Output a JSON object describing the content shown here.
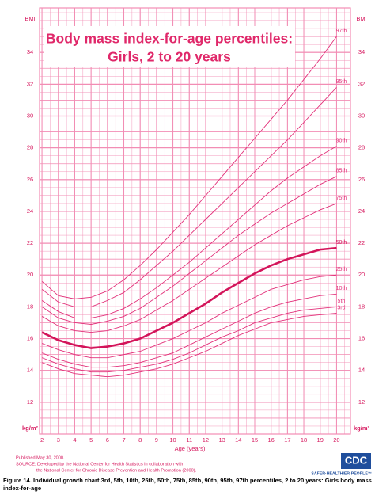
{
  "chart_data": {
    "type": "line",
    "title": "Body mass index-for-age percentiles:",
    "subtitle": "Girls, 2 to 20 years",
    "xlabel": "Age (years)",
    "y_unit_top": "BMI",
    "y_unit_bottom": "kg/m²",
    "x": [
      2,
      3,
      4,
      5,
      6,
      7,
      8,
      9,
      10,
      11,
      12,
      13,
      14,
      15,
      16,
      17,
      18,
      19,
      20
    ],
    "xlim": [
      1.85,
      20.85
    ],
    "xticks": [
      2,
      3,
      4,
      5,
      6,
      7,
      8,
      9,
      10,
      11,
      12,
      13,
      14,
      15,
      16,
      17,
      18,
      19,
      20
    ],
    "ylim": [
      10,
      36.8
    ],
    "yticks": [
      12,
      14,
      16,
      18,
      20,
      22,
      24,
      26,
      28,
      30,
      32,
      34
    ],
    "grid": true,
    "grid_color": "#f28db4",
    "series": [
      {
        "name": "97th",
        "color": "#e2317a",
        "values": [
          19.6,
          18.7,
          18.5,
          18.6,
          19.0,
          19.7,
          20.6,
          21.6,
          22.7,
          23.8,
          25.0,
          26.2,
          27.4,
          28.6,
          29.8,
          31.0,
          32.3,
          33.6,
          35.0
        ]
      },
      {
        "name": "95th",
        "color": "#e2317a",
        "values": [
          19.1,
          18.3,
          18.0,
          18.0,
          18.4,
          18.9,
          19.7,
          20.6,
          21.5,
          22.5,
          23.5,
          24.5,
          25.5,
          26.5,
          27.5,
          28.5,
          29.6,
          30.7,
          31.8
        ]
      },
      {
        "name": "90th",
        "color": "#e2317a",
        "values": [
          18.4,
          17.7,
          17.3,
          17.3,
          17.5,
          17.9,
          18.5,
          19.2,
          20.0,
          20.8,
          21.7,
          22.6,
          23.5,
          24.4,
          25.3,
          26.1,
          26.8,
          27.5,
          28.1
        ]
      },
      {
        "name": "85th",
        "color": "#e2317a",
        "values": [
          18.0,
          17.3,
          17.0,
          16.9,
          17.1,
          17.4,
          17.9,
          18.6,
          19.3,
          20.1,
          20.9,
          21.7,
          22.5,
          23.2,
          23.9,
          24.5,
          25.1,
          25.7,
          26.2
        ]
      },
      {
        "name": "75th",
        "color": "#e2317a",
        "values": [
          17.4,
          16.8,
          16.5,
          16.4,
          16.5,
          16.8,
          17.2,
          17.8,
          18.4,
          19.1,
          19.8,
          20.5,
          21.2,
          21.9,
          22.5,
          23.1,
          23.6,
          24.1,
          24.5
        ]
      },
      {
        "name": "50th",
        "color": "#d3145a",
        "emphasis": true,
        "values": [
          16.4,
          15.9,
          15.6,
          15.4,
          15.5,
          15.7,
          16.0,
          16.5,
          17.0,
          17.6,
          18.2,
          18.9,
          19.5,
          20.1,
          20.6,
          21.0,
          21.3,
          21.6,
          21.7
        ]
      },
      {
        "name": "25th",
        "color": "#e2317a",
        "values": [
          15.7,
          15.3,
          15.0,
          14.8,
          14.8,
          15.0,
          15.2,
          15.6,
          16.0,
          16.5,
          17.0,
          17.6,
          18.1,
          18.6,
          19.1,
          19.4,
          19.7,
          19.9,
          20.0
        ]
      },
      {
        "name": "10th",
        "color": "#e2317a",
        "values": [
          15.1,
          14.7,
          14.4,
          14.2,
          14.2,
          14.3,
          14.5,
          14.8,
          15.1,
          15.6,
          16.1,
          16.6,
          17.1,
          17.6,
          18.0,
          18.3,
          18.5,
          18.7,
          18.8
        ]
      },
      {
        "name": "5th",
        "color": "#e2317a",
        "values": [
          14.8,
          14.4,
          14.1,
          13.9,
          13.9,
          14.0,
          14.2,
          14.4,
          14.7,
          15.1,
          15.6,
          16.1,
          16.5,
          17.0,
          17.3,
          17.6,
          17.8,
          17.9,
          18.0
        ]
      },
      {
        "name": "3rd",
        "color": "#e2317a",
        "values": [
          14.5,
          14.1,
          13.8,
          13.7,
          13.6,
          13.7,
          13.9,
          14.1,
          14.4,
          14.8,
          15.2,
          15.7,
          16.2,
          16.6,
          17.0,
          17.2,
          17.4,
          17.5,
          17.6
        ]
      }
    ]
  },
  "footer": {
    "published": "Published May 30, 2000.",
    "source_1": "SOURCE: Developed by the National Center for Health Statistics in collaboration with",
    "source_2": "the National Center for Chronic Disease Prevention and Health Promotion (2000)."
  },
  "logo": {
    "mark": "CDC",
    "tagline": "SAFER·HEALTHIER·PEOPLE™"
  },
  "caption": {
    "line_1": "Figure 14. Individual growth chart 3rd, 5th, 10th, 25th, 50th, 75th, 85th, 90th, 95th, 97th percentiles, 2 to 20 years: Girls body mass",
    "line_2": "index-for-age"
  }
}
